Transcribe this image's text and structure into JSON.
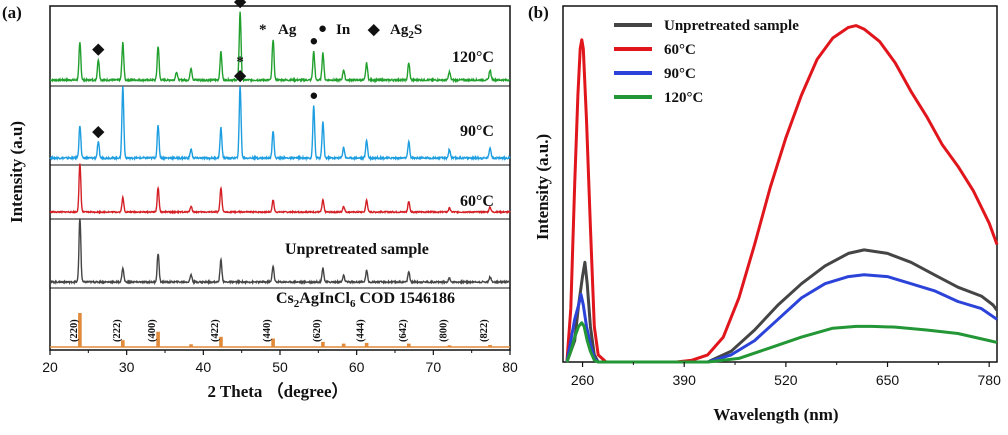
{
  "chart_data": [
    {
      "panel": "(a)",
      "type": "line",
      "xlabel": "2 Theta （degree）",
      "ylabel": "Intensity (a.u)",
      "xlim": [
        20,
        80
      ],
      "xticks": [
        20,
        30,
        40,
        50,
        60,
        70,
        80
      ],
      "markers_legend": [
        {
          "symbol": "*",
          "label": "Ag"
        },
        {
          "symbol": "●",
          "label": "In"
        },
        {
          "symbol": "◆",
          "label": "Ag2S"
        }
      ],
      "series": [
        {
          "name": "120°C",
          "color": "#22a02e",
          "peaks": [
            [
              23.9,
              0.55
            ],
            [
              26.3,
              0.3
            ],
            [
              29.5,
              0.55
            ],
            [
              34.1,
              0.5
            ],
            [
              36.5,
              0.12
            ],
            [
              38.4,
              0.18
            ],
            [
              42.3,
              0.42
            ],
            [
              44.8,
              1.0
            ],
            [
              49.1,
              0.6
            ],
            [
              54.4,
              0.42
            ],
            [
              55.6,
              0.4
            ],
            [
              58.3,
              0.15
            ],
            [
              61.3,
              0.25
            ],
            [
              66.8,
              0.25
            ],
            [
              72.1,
              0.12
            ],
            [
              77.4,
              0.15
            ]
          ],
          "annotations": [
            {
              "x": 26.3,
              "symbol": "◆"
            },
            {
              "x": 44.8,
              "symbol": "*◆"
            },
            {
              "x": 54.4,
              "symbol": "●"
            }
          ]
        },
        {
          "name": "90°C",
          "color": "#1e9ee0",
          "peaks": [
            [
              23.9,
              0.45
            ],
            [
              26.3,
              0.22
            ],
            [
              29.5,
              1.0
            ],
            [
              34.1,
              0.45
            ],
            [
              38.4,
              0.12
            ],
            [
              42.3,
              0.42
            ],
            [
              44.8,
              1.0
            ],
            [
              49.1,
              0.38
            ],
            [
              54.4,
              0.72
            ],
            [
              55.6,
              0.5
            ],
            [
              58.3,
              0.15
            ],
            [
              61.3,
              0.25
            ],
            [
              66.8,
              0.22
            ],
            [
              72.1,
              0.12
            ],
            [
              77.4,
              0.15
            ]
          ],
          "annotations": [
            {
              "x": 26.3,
              "symbol": "◆"
            },
            {
              "x": 44.8,
              "symbol": "*◆"
            },
            {
              "x": 54.4,
              "symbol": "●"
            }
          ]
        },
        {
          "name": "60°C",
          "color": "#d42025",
          "peaks": [
            [
              23.9,
              1.0
            ],
            [
              29.5,
              0.3
            ],
            [
              34.1,
              0.5
            ],
            [
              38.4,
              0.12
            ],
            [
              42.3,
              0.5
            ],
            [
              49.1,
              0.25
            ],
            [
              55.6,
              0.25
            ],
            [
              58.3,
              0.12
            ],
            [
              61.3,
              0.25
            ],
            [
              66.8,
              0.22
            ],
            [
              72.1,
              0.08
            ],
            [
              77.4,
              0.1
            ]
          ]
        },
        {
          "name": "Unpretreated sample",
          "color": "#454545",
          "peaks": [
            [
              23.9,
              1.0
            ],
            [
              29.5,
              0.22
            ],
            [
              34.1,
              0.45
            ],
            [
              38.4,
              0.12
            ],
            [
              42.3,
              0.35
            ],
            [
              49.1,
              0.25
            ],
            [
              55.6,
              0.22
            ],
            [
              58.3,
              0.1
            ],
            [
              61.3,
              0.18
            ],
            [
              66.8,
              0.16
            ],
            [
              72.1,
              0.06
            ],
            [
              77.4,
              0.08
            ]
          ]
        },
        {
          "name": "Cs2AgInCl6 COD 1546186",
          "color": "#e08a3a",
          "sticks": [
            [
              23.9,
              1.0
            ],
            [
              29.5,
              0.2
            ],
            [
              34.1,
              0.45
            ],
            [
              38.4,
              0.08
            ],
            [
              42.3,
              0.3
            ],
            [
              49.1,
              0.25
            ],
            [
              55.6,
              0.15
            ],
            [
              58.3,
              0.1
            ],
            [
              61.3,
              0.12
            ],
            [
              66.8,
              0.1
            ],
            [
              72.1,
              0.05
            ],
            [
              77.4,
              0.06
            ]
          ],
          "hkl": [
            [
              "(220)",
              23.9
            ],
            [
              "(222)",
              29.5
            ],
            [
              "(400)",
              34.1
            ],
            [
              "(422)",
              42.3
            ],
            [
              "(440)",
              49.1
            ],
            [
              "(620)",
              55.6
            ],
            [
              "(444)",
              61.3
            ],
            [
              "(642)",
              66.8
            ],
            [
              "(800)",
              72.1
            ],
            [
              "(822)",
              77.4
            ]
          ]
        }
      ],
      "labels": {
        "120": "120°C",
        "90": "90°C",
        "60": "60°C",
        "unpre": "Unpretreated sample",
        "ref_main": "Cs",
        "ref_s1": "2",
        "ref_mid": "AgInCl",
        "ref_s2": "6",
        "ref_tail": " COD 1546186",
        "m_ag_sym": "*",
        "m_ag": "Ag",
        "m_in_sym": "●",
        "m_in": "In",
        "m_s_sym": "◆",
        "m_s_main": "Ag",
        "m_s_sub": "2",
        "m_s_tail": "S"
      }
    },
    {
      "panel": "(b)",
      "type": "line",
      "xlabel": "Wavelength (nm)",
      "ylabel": "Intensity (a.u.)",
      "xlim": [
        235,
        790
      ],
      "xticks": [
        260,
        390,
        520,
        650,
        780
      ],
      "series": [
        {
          "name": "Unpretreated sample",
          "color": "#454545",
          "points": [
            [
              240,
              0
            ],
            [
              250,
              0.06
            ],
            [
              255,
              0.16
            ],
            [
              260,
              0.24
            ],
            [
              263,
              0.28
            ],
            [
              266,
              0.22
            ],
            [
              270,
              0.1
            ],
            [
              275,
              0.02
            ],
            [
              280,
              0
            ],
            [
              420,
              0
            ],
            [
              450,
              0.03
            ],
            [
              480,
              0.09
            ],
            [
              510,
              0.16
            ],
            [
              540,
              0.22
            ],
            [
              570,
              0.27
            ],
            [
              600,
              0.305
            ],
            [
              620,
              0.315
            ],
            [
              650,
              0.305
            ],
            [
              680,
              0.28
            ],
            [
              710,
              0.245
            ],
            [
              740,
              0.21
            ],
            [
              770,
              0.185
            ],
            [
              785,
              0.16
            ],
            [
              790,
              0.145
            ]
          ]
        },
        {
          "name": "60°C",
          "color": "#e0161c",
          "points": [
            [
              240,
              0
            ],
            [
              245,
              0.15
            ],
            [
              250,
              0.5
            ],
            [
              254,
              0.75
            ],
            [
              257,
              0.88
            ],
            [
              259,
              0.905
            ],
            [
              261,
              0.88
            ],
            [
              265,
              0.68
            ],
            [
              270,
              0.38
            ],
            [
              275,
              0.1
            ],
            [
              280,
              0.02
            ],
            [
              290,
              0
            ],
            [
              380,
              0
            ],
            [
              400,
              0.005
            ],
            [
              420,
              0.02
            ],
            [
              440,
              0.07
            ],
            [
              460,
              0.18
            ],
            [
              480,
              0.33
            ],
            [
              500,
              0.49
            ],
            [
              520,
              0.63
            ],
            [
              540,
              0.75
            ],
            [
              560,
              0.85
            ],
            [
              580,
              0.91
            ],
            [
              600,
              0.94
            ],
            [
              610,
              0.945
            ],
            [
              620,
              0.935
            ],
            [
              640,
              0.9
            ],
            [
              660,
              0.84
            ],
            [
              680,
              0.76
            ],
            [
              700,
              0.69
            ],
            [
              720,
              0.61
            ],
            [
              740,
              0.55
            ],
            [
              760,
              0.48
            ],
            [
              780,
              0.39
            ],
            [
              790,
              0.33
            ]
          ]
        },
        {
          "name": "90°C",
          "color": "#2b43d8",
          "points": [
            [
              240,
              0
            ],
            [
              245,
              0.06
            ],
            [
              250,
              0.12
            ],
            [
              255,
              0.16
            ],
            [
              258,
              0.19
            ],
            [
              261,
              0.16
            ],
            [
              265,
              0.1
            ],
            [
              270,
              0.05
            ],
            [
              275,
              0.01
            ],
            [
              280,
              0
            ],
            [
              420,
              0
            ],
            [
              450,
              0.02
            ],
            [
              480,
              0.06
            ],
            [
              510,
              0.12
            ],
            [
              540,
              0.18
            ],
            [
              570,
              0.22
            ],
            [
              600,
              0.24
            ],
            [
              620,
              0.245
            ],
            [
              650,
              0.24
            ],
            [
              680,
              0.22
            ],
            [
              710,
              0.2
            ],
            [
              740,
              0.17
            ],
            [
              770,
              0.15
            ],
            [
              790,
              0.12
            ]
          ]
        },
        {
          "name": "120°C",
          "color": "#239636",
          "points": [
            [
              240,
              0
            ],
            [
              245,
              0.03
            ],
            [
              250,
              0.07
            ],
            [
              255,
              0.1
            ],
            [
              259,
              0.11
            ],
            [
              262,
              0.1
            ],
            [
              266,
              0.06
            ],
            [
              270,
              0.03
            ],
            [
              275,
              0.005
            ],
            [
              280,
              0
            ],
            [
              420,
              0
            ],
            [
              460,
              0.01
            ],
            [
              500,
              0.04
            ],
            [
              540,
              0.07
            ],
            [
              580,
              0.095
            ],
            [
              610,
              0.1
            ],
            [
              630,
              0.1
            ],
            [
              660,
              0.098
            ],
            [
              700,
              0.09
            ],
            [
              740,
              0.08
            ],
            [
              780,
              0.06
            ],
            [
              790,
              0.055
            ]
          ]
        }
      ]
    }
  ]
}
